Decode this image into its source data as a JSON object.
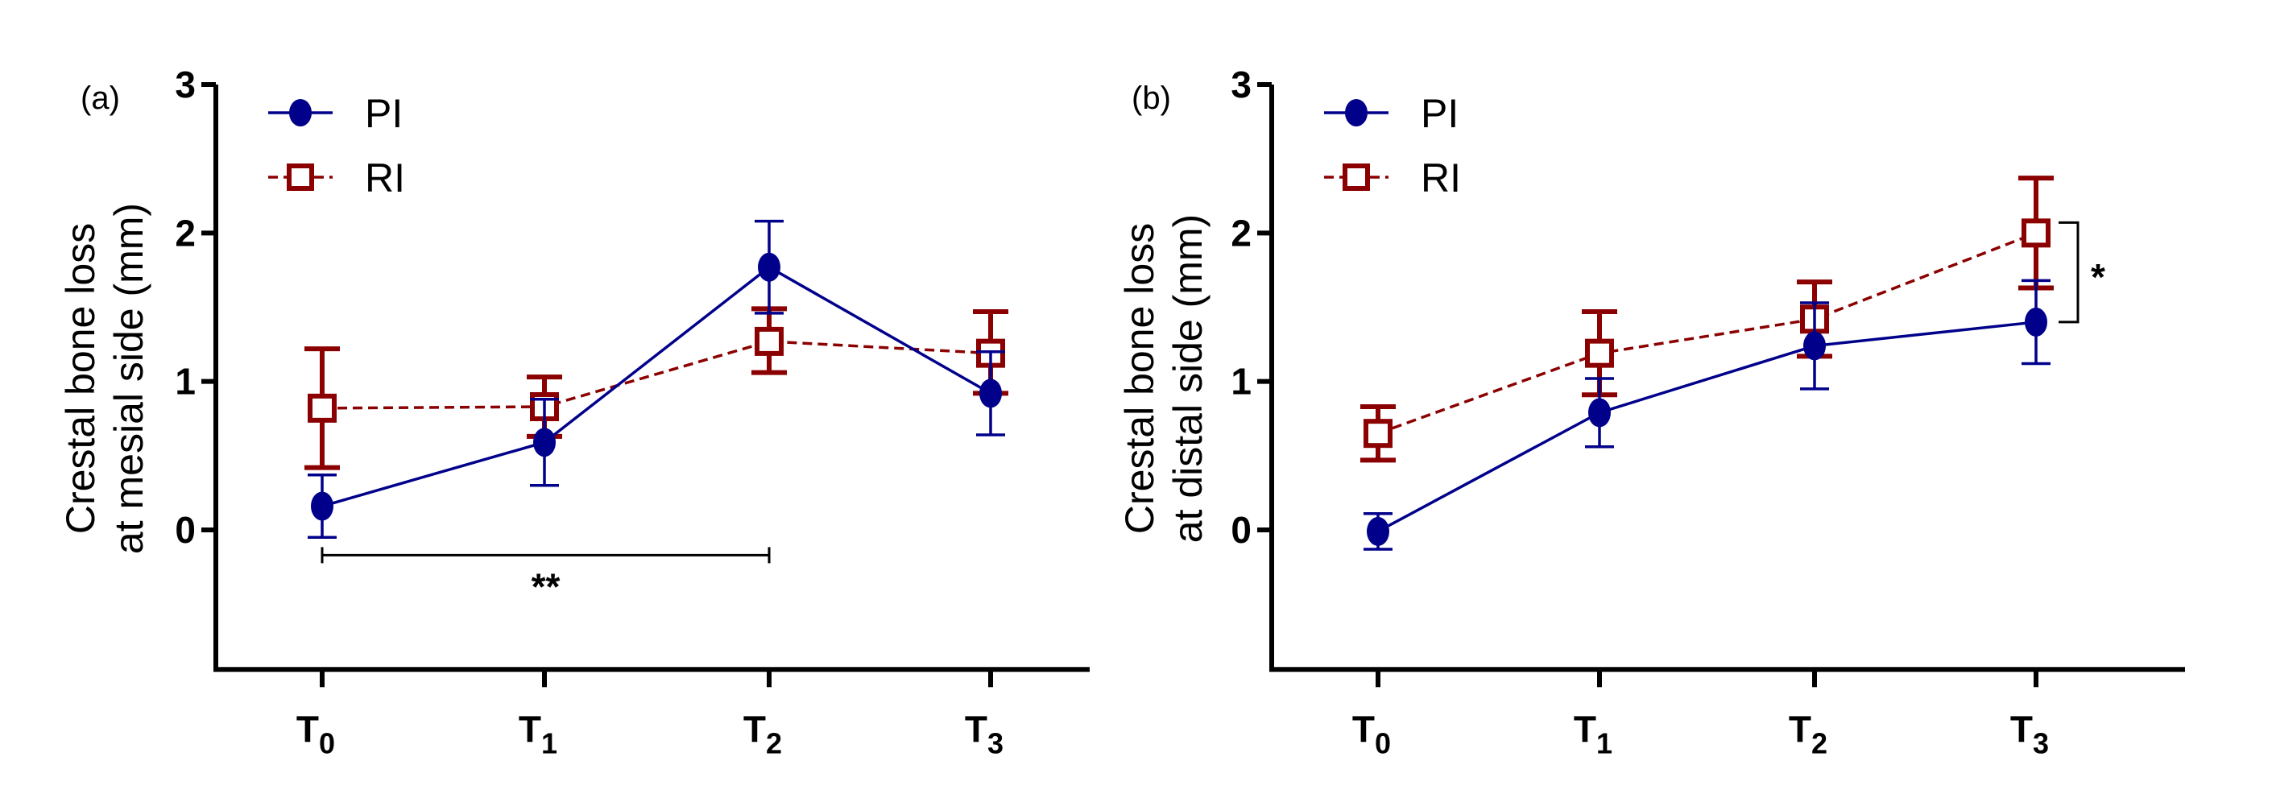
{
  "chart_data": [
    {
      "type": "line",
      "panel_label": "(a)",
      "ylabel_lines": [
        "Crestal bone loss",
        "at mesial side (mm)"
      ],
      "categories": [
        "T0",
        "T1",
        "T2",
        "T3"
      ],
      "category_main": [
        "T",
        "T",
        "T",
        "T"
      ],
      "category_sub": [
        "0",
        "1",
        "2",
        "3"
      ],
      "yticks": [
        0,
        1,
        2,
        3
      ],
      "ylim": [
        -0.94,
        3
      ],
      "legend_position": "top-left",
      "series": [
        {
          "name": "PI",
          "color": "#00008B",
          "marker": "filled-circle",
          "line": "solid",
          "values": [
            0.16,
            0.59,
            1.77,
            0.92
          ],
          "err_low": [
            -0.05,
            0.3,
            1.46,
            0.64
          ],
          "err_high": [
            0.37,
            0.88,
            2.08,
            1.2
          ]
        },
        {
          "name": "RI",
          "color": "#8B0000",
          "marker": "open-square",
          "line": "dashed",
          "values": [
            0.82,
            0.83,
            1.27,
            1.19
          ],
          "err_low": [
            0.42,
            0.63,
            1.06,
            0.92
          ],
          "err_high": [
            1.22,
            1.03,
            1.49,
            1.47
          ]
        }
      ],
      "annotations": [
        {
          "type": "horizontal-bracket",
          "from": "T0",
          "to": "T2",
          "y": -0.17,
          "text": "**"
        }
      ]
    },
    {
      "type": "line",
      "panel_label": "(b)",
      "ylabel_lines": [
        "Crestal bone loss",
        "at distal side (mm)"
      ],
      "categories": [
        "T0",
        "T1",
        "T2",
        "T3"
      ],
      "category_main": [
        "T",
        "T",
        "T",
        "T"
      ],
      "category_sub": [
        "0",
        "1",
        "2",
        "3"
      ],
      "yticks": [
        0,
        1,
        2,
        3
      ],
      "ylim": [
        -0.94,
        3
      ],
      "legend_position": "top-left",
      "series": [
        {
          "name": "PI",
          "color": "#00008B",
          "marker": "filled-circle",
          "line": "solid",
          "values": [
            -0.01,
            0.79,
            1.24,
            1.4
          ],
          "err_low": [
            -0.13,
            0.56,
            0.95,
            1.12
          ],
          "err_high": [
            0.11,
            1.02,
            1.53,
            1.68
          ]
        },
        {
          "name": "RI",
          "color": "#8B0000",
          "marker": "open-square",
          "line": "dashed",
          "values": [
            0.65,
            1.19,
            1.42,
            2.0
          ],
          "err_low": [
            0.47,
            0.91,
            1.17,
            1.63
          ],
          "err_high": [
            0.83,
            1.47,
            1.67,
            2.37
          ]
        }
      ],
      "annotations": [
        {
          "type": "vertical-bracket",
          "at": "T3",
          "y_from": 1.4,
          "y_to": 2.07,
          "text": "*"
        }
      ]
    }
  ]
}
